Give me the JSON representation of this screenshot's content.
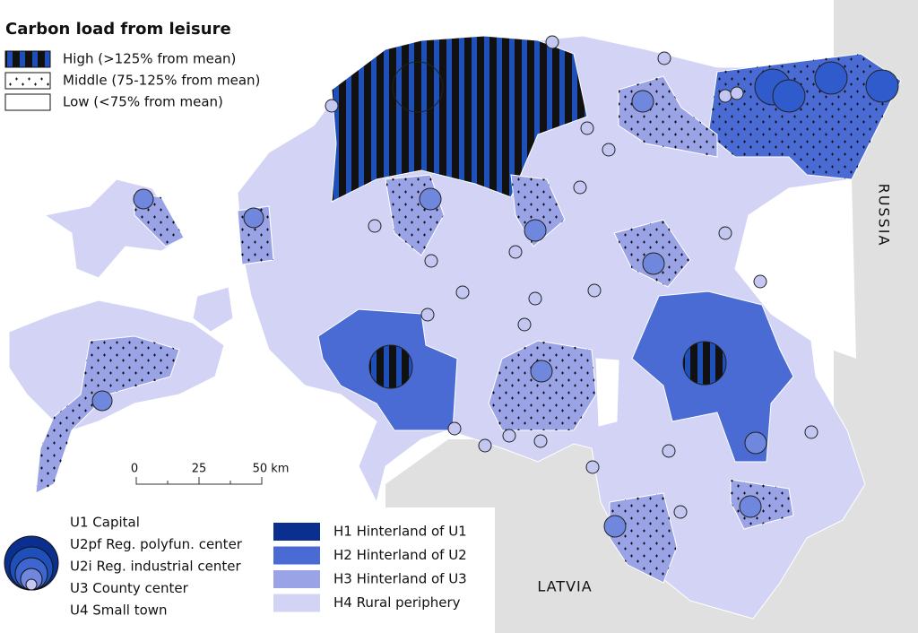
{
  "title": "Carbon load from leisure",
  "pattern_legend": [
    "High (>125% from mean)",
    "Middle (75-125% from mean)",
    "Low (<75% from mean)"
  ],
  "scale_bar": [
    "0",
    "25",
    "50 km"
  ],
  "countries": [
    "RUSSIA",
    "LATVIA"
  ],
  "settlement_legend": [
    "U1 Capital",
    "U2pf Reg. polyfun. center",
    "U2i Reg. industrial center",
    "U3 County center",
    "U4 Small town"
  ],
  "zone_legend": [
    {
      "label": "H1 Hinterland of U1",
      "color": "#0b2f8f"
    },
    {
      "label": "H2 Hinterland of U2",
      "color": "#4a6bd3"
    },
    {
      "label": "H3 Hinterland of U3",
      "color": "#9aa3e6"
    },
    {
      "label": "H4 Rural periphery",
      "color": "#d3d4f5"
    }
  ]
}
